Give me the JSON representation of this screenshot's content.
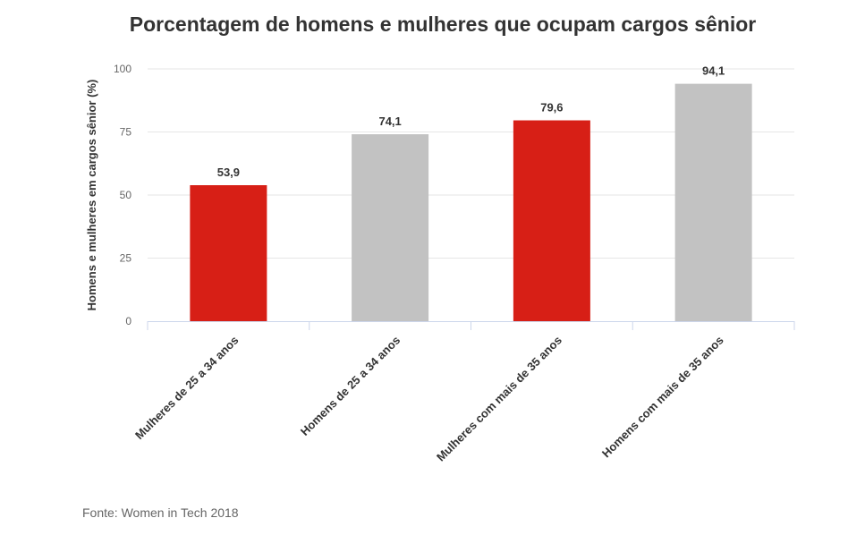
{
  "source": "Fonte: Women in Tech 2018",
  "colors": {
    "female": "#d71f16",
    "male": "#c2c2c2",
    "grid": "#e6e6e6",
    "axis": "#ccd6eb"
  },
  "chart_data": {
    "type": "bar",
    "title": "Porcentagem de homens e mulheres que ocupam cargos sênior",
    "xlabel": "",
    "ylabel": "Homens e mulheres em cargos sênior (%)",
    "ylim": [
      0,
      100
    ],
    "yticks": [
      "0",
      "25",
      "50",
      "75",
      "100"
    ],
    "grid": true,
    "legend": "none",
    "categories": [
      "Mulheres de 25 a 34 anos",
      "Homens de 25 a 34 anos",
      "Mulheres com mais de 35 anos",
      "Homens com mais de 35 anos"
    ],
    "values": [
      53.9,
      74.1,
      79.6,
      94.1
    ],
    "value_labels": [
      "53,9",
      "74,1",
      "79,6",
      "94,1"
    ],
    "bar_colors": [
      "#d71f16",
      "#c2c2c2",
      "#d71f16",
      "#c2c2c2"
    ]
  }
}
